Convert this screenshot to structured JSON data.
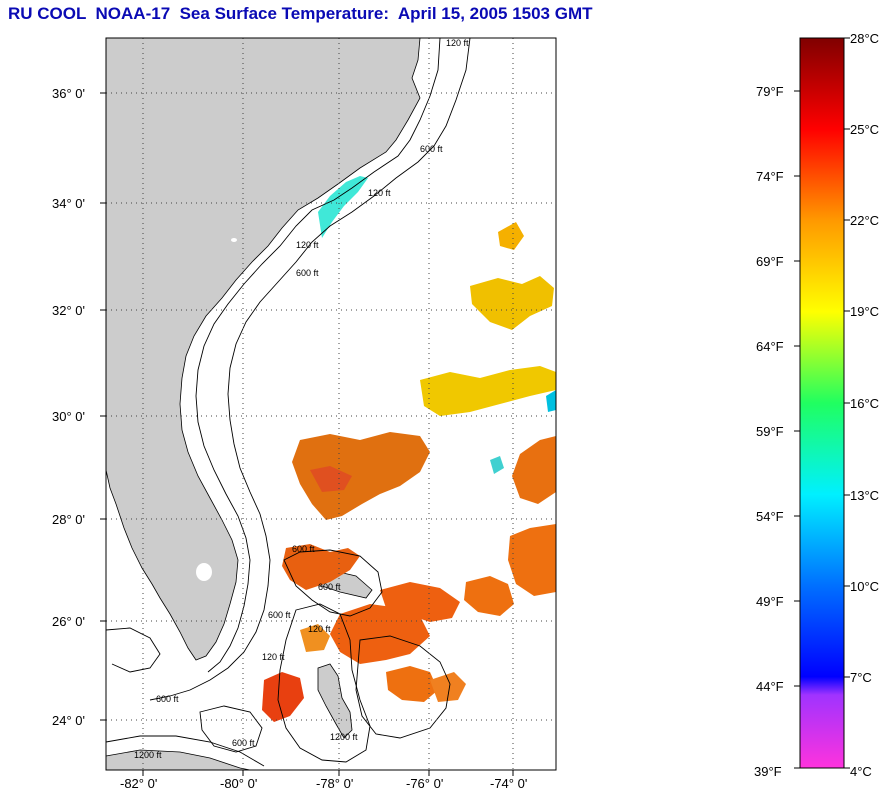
{
  "title": "RU COOL  NOAA-17  Sea Surface Temperature:  April 15, 2005 1503 GMT",
  "map": {
    "lat_labels": [
      "36° 0'",
      "34° 0'",
      "32° 0'",
      "30° 0'",
      "28° 0'",
      "26° 0'",
      "24° 0'"
    ],
    "lon_labels": [
      "-82° 0'",
      "-80° 0'",
      "-78° 0'",
      "-76° 0'",
      "-74° 0'"
    ],
    "contour_labels": [
      "120 ft",
      "600 ft",
      "120 ft",
      "600 ft",
      "120 ft",
      "600 ft",
      "120 ft",
      "600 ft",
      "1200 ft",
      "600 ft",
      "1200 ft",
      "600 ft",
      "120 ft",
      "600 ft"
    ]
  },
  "colorbar": {
    "celsius": [
      "28°C",
      "25°C",
      "22°C",
      "19°C",
      "16°C",
      "13°C",
      "10°C",
      "7°C",
      "4°C"
    ],
    "fahrenheit": [
      "79°F",
      "74°F",
      "69°F",
      "64°F",
      "59°F",
      "54°F",
      "49°F",
      "44°F",
      "39°F"
    ],
    "range_c": [
      4,
      28
    ],
    "colors": [
      "#ff33dd",
      "#7a33ff",
      "#0000ff",
      "#0088ff",
      "#00f0f0",
      "#00ff88",
      "#88ff00",
      "#ffff00",
      "#ffaa00",
      "#ff6600",
      "#ff0000",
      "#8b0000"
    ]
  }
}
